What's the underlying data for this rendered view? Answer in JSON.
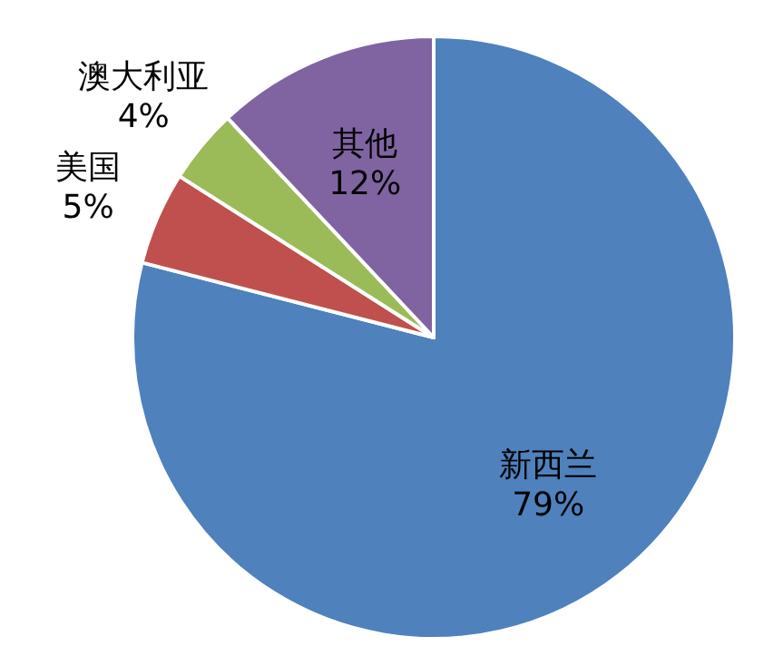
{
  "chart_data": {
    "type": "pie",
    "categories": [
      "新西兰",
      "美国",
      "澳大利亚",
      "其他"
    ],
    "values": [
      79,
      5,
      4,
      12
    ],
    "colors": [
      "#4f81bd",
      "#c0504d",
      "#9bbb59",
      "#8064a2"
    ],
    "value_labels": [
      "79%",
      "5%",
      "4%",
      "12%"
    ]
  }
}
